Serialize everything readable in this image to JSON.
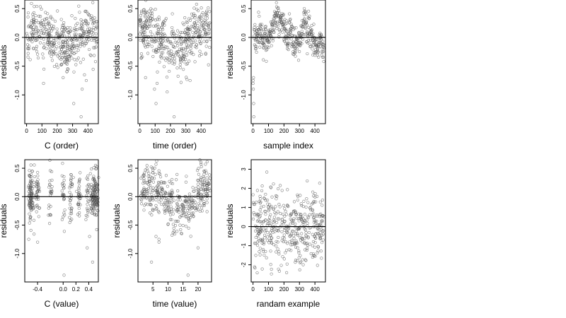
{
  "chart_data": [
    {
      "id": "p1",
      "type": "scatter",
      "xlabel": "C (order)",
      "ylabel": "residuals",
      "xlim": [
        -12,
        468
      ],
      "ylim": [
        -1.5,
        0.65
      ],
      "xticks": [
        0,
        100,
        200,
        300,
        400
      ],
      "xtick_labels": [
        "0",
        "100",
        "200",
        "300",
        "400"
      ],
      "yticks": [
        0.5,
        0,
        -0.5,
        -1.0
      ],
      "ytick_labels": [
        "0.5",
        "0.0",
        "-0.5",
        "-1.0"
      ],
      "pattern": "cluster_wave",
      "n": 450,
      "seed": 11,
      "x_range": [
        0,
        460
      ]
    },
    {
      "id": "p2",
      "type": "scatter",
      "xlabel": "time (order)",
      "ylabel": "residuals",
      "xlim": [
        -12,
        468
      ],
      "ylim": [
        -1.5,
        0.65
      ],
      "xticks": [
        0,
        100,
        200,
        300,
        400
      ],
      "xtick_labels": [
        "0",
        "100",
        "200",
        "300",
        "400"
      ],
      "yticks": [
        0.5,
        0,
        -0.5,
        -1.0
      ],
      "ytick_labels": [
        "0.5",
        "0.0",
        "-0.5",
        "-1.0"
      ],
      "pattern": "decreasing_wave",
      "n": 450,
      "seed": 23,
      "x_range": [
        0,
        460
      ]
    },
    {
      "id": "p3",
      "type": "scatter",
      "xlabel": "sample index",
      "ylabel": "residuals",
      "xlim": [
        -12,
        468
      ],
      "ylim": [
        -1.5,
        0.65
      ],
      "xticks": [
        0,
        100,
        200,
        300,
        400
      ],
      "xtick_labels": [
        "0",
        "100",
        "200",
        "300",
        "400"
      ],
      "yticks": [
        0.5,
        0,
        -0.5,
        -1.0
      ],
      "ytick_labels": [
        "0.5",
        "0.0",
        "-0.5",
        "-1.0"
      ],
      "pattern": "random_walk",
      "n": 450,
      "seed": 37,
      "x_range": [
        0,
        460
      ]
    },
    {
      "id": "p4",
      "type": "scatter",
      "xlabel": "C (value)",
      "ylabel": "residuals",
      "xlim": [
        -0.6,
        0.55
      ],
      "ylim": [
        -1.5,
        0.65
      ],
      "xticks": [
        -0.4,
        0,
        0.2,
        0.4
      ],
      "xtick_labels": [
        "-0.4",
        "0.0",
        "0.2",
        "0.4"
      ],
      "yticks": [
        0.5,
        0,
        -0.5,
        -1.0
      ],
      "ytick_labels": [
        "0.5",
        "0.0",
        "-0.5",
        "-1.0"
      ],
      "pattern": "clustered_x",
      "n": 420,
      "seed": 41,
      "x_range": [
        -0.55,
        0.52
      ]
    },
    {
      "id": "p5",
      "type": "scatter",
      "xlabel": "time (value)",
      "ylabel": "residuals",
      "xlim": [
        0,
        24.5
      ],
      "ylim": [
        -1.5,
        0.65
      ],
      "xticks": [
        5,
        10,
        15,
        20
      ],
      "xtick_labels": [
        "5",
        "10",
        "15",
        "20"
      ],
      "yticks": [
        0.5,
        0,
        -0.5,
        -1.0
      ],
      "ytick_labels": [
        "0.5",
        "0.0",
        "-0.5",
        "-1.0"
      ],
      "pattern": "time_value",
      "n": 430,
      "seed": 53,
      "x_range": [
        1,
        24
      ]
    },
    {
      "id": "p6",
      "type": "scatter",
      "xlabel": "randam example",
      "ylabel": "residuals",
      "xlim": [
        -12,
        468
      ],
      "ylim": [
        -2.9,
        3.5
      ],
      "xticks": [
        0,
        100,
        200,
        300,
        400
      ],
      "xtick_labels": [
        "0",
        "100",
        "200",
        "300",
        "400"
      ],
      "yticks": [
        3,
        2,
        1,
        0,
        -1,
        -2
      ],
      "ytick_labels": [
        "3",
        "2",
        "1",
        "0",
        "-1",
        "-2"
      ],
      "pattern": "normal",
      "n": 450,
      "seed": 71,
      "x_range": [
        0,
        460
      ]
    }
  ]
}
